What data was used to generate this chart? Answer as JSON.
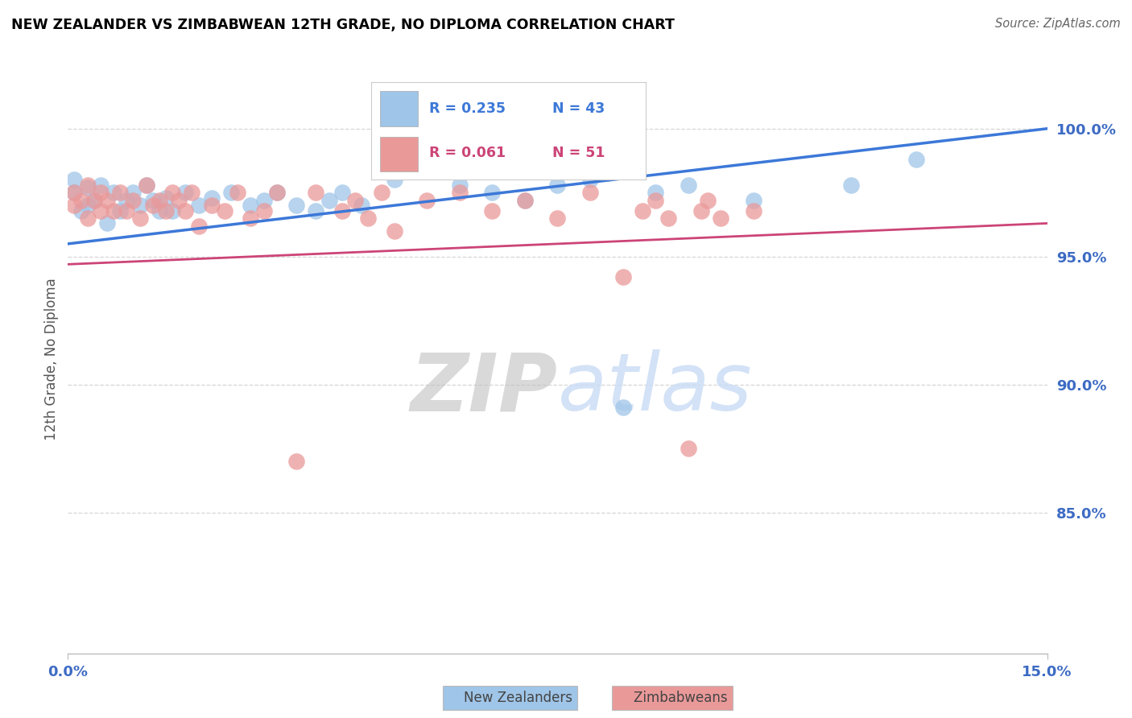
{
  "title": "NEW ZEALANDER VS ZIMBABWEAN 12TH GRADE, NO DIPLOMA CORRELATION CHART",
  "source": "Source: ZipAtlas.com",
  "ylabel": "12th Grade, No Diploma",
  "xmin": 0.0,
  "xmax": 0.15,
  "ymin": 0.795,
  "ymax": 1.025,
  "yticks": [
    0.85,
    0.9,
    0.95,
    1.0
  ],
  "ytick_labels": [
    "85.0%",
    "90.0%",
    "95.0%",
    "100.0%"
  ],
  "legend_blue_r": "R = 0.235",
  "legend_blue_n": "N = 43",
  "legend_pink_r": "R = 0.061",
  "legend_pink_n": "N = 51",
  "blue_scatter_color": "#9fc5e8",
  "pink_scatter_color": "#ea9999",
  "blue_line_color": "#3c78d8",
  "pink_line_color": "#cc4477",
  "blue_line_x": [
    0.0,
    0.15
  ],
  "blue_line_y": [
    0.955,
    1.0
  ],
  "pink_line_x": [
    0.0,
    0.15
  ],
  "pink_line_y": [
    0.947,
    0.963
  ],
  "tick_label_color": "#3d6bc4",
  "grid_color": "#cccccc",
  "watermark_color": "#ccddf5",
  "blue_x": [
    0.001,
    0.001,
    0.002,
    0.003,
    0.003,
    0.004,
    0.005,
    0.006,
    0.007,
    0.008,
    0.009,
    0.01,
    0.011,
    0.012,
    0.013,
    0.014,
    0.015,
    0.016,
    0.018,
    0.02,
    0.022,
    0.025,
    0.028,
    0.03,
    0.032,
    0.035,
    0.038,
    0.04,
    0.042,
    0.045,
    0.05,
    0.055,
    0.06,
    0.065,
    0.07,
    0.075,
    0.08,
    0.085,
    0.09,
    0.095,
    0.105,
    0.12,
    0.13
  ],
  "blue_y": [
    0.975,
    0.98,
    0.968,
    0.977,
    0.97,
    0.972,
    0.978,
    0.963,
    0.975,
    0.968,
    0.972,
    0.975,
    0.97,
    0.978,
    0.972,
    0.968,
    0.973,
    0.968,
    0.975,
    0.97,
    0.973,
    0.975,
    0.97,
    0.972,
    0.975,
    0.97,
    0.968,
    0.972,
    0.975,
    0.97,
    0.98,
    0.985,
    0.978,
    0.975,
    0.972,
    0.978,
    0.98,
    0.891,
    0.975,
    0.978,
    0.972,
    0.978,
    0.988
  ],
  "pink_x": [
    0.001,
    0.001,
    0.002,
    0.003,
    0.003,
    0.004,
    0.005,
    0.005,
    0.006,
    0.007,
    0.008,
    0.009,
    0.01,
    0.011,
    0.012,
    0.013,
    0.014,
    0.015,
    0.016,
    0.017,
    0.018,
    0.019,
    0.02,
    0.022,
    0.024,
    0.026,
    0.028,
    0.03,
    0.032,
    0.035,
    0.038,
    0.042,
    0.044,
    0.046,
    0.048,
    0.05,
    0.055,
    0.06,
    0.065,
    0.07,
    0.075,
    0.08,
    0.085,
    0.088,
    0.09,
    0.092,
    0.095,
    0.097,
    0.098,
    0.1,
    0.105
  ],
  "pink_y": [
    0.975,
    0.97,
    0.972,
    0.978,
    0.965,
    0.972,
    0.968,
    0.975,
    0.972,
    0.968,
    0.975,
    0.968,
    0.972,
    0.965,
    0.978,
    0.97,
    0.972,
    0.968,
    0.975,
    0.972,
    0.968,
    0.975,
    0.962,
    0.97,
    0.968,
    0.975,
    0.965,
    0.968,
    0.975,
    0.87,
    0.975,
    0.968,
    0.972,
    0.965,
    0.975,
    0.96,
    0.972,
    0.975,
    0.968,
    0.972,
    0.965,
    0.975,
    0.942,
    0.968,
    0.972,
    0.965,
    0.875,
    0.968,
    0.972,
    0.965,
    0.968
  ]
}
